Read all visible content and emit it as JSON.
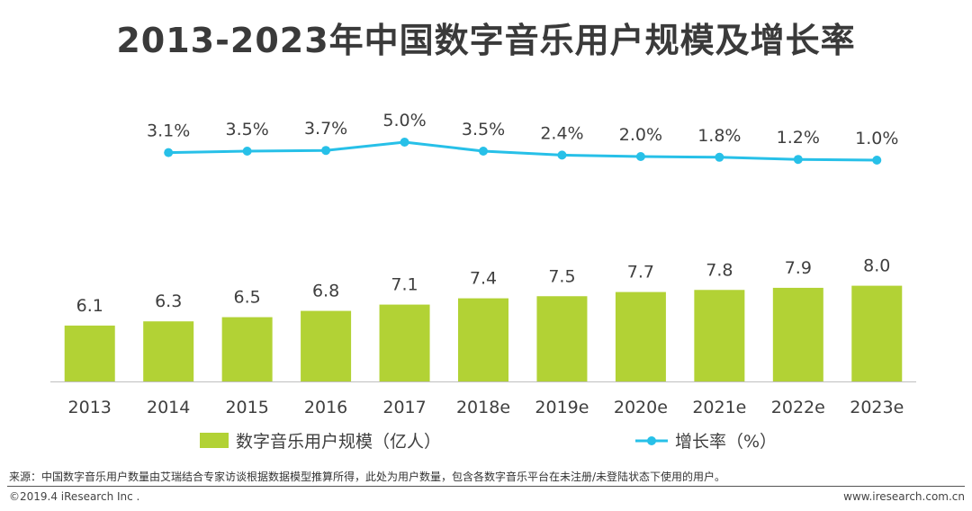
{
  "chart_data": {
    "type": "bar",
    "title": "2013-2023年中国数字音乐用户规模及增长率",
    "categories": [
      "2013",
      "2014",
      "2015",
      "2016",
      "2017",
      "2018e",
      "2019e",
      "2020e",
      "2021e",
      "2022e",
      "2023e"
    ],
    "series": [
      {
        "name": "数字音乐用户规模（亿人）",
        "type": "bar",
        "color": "#b2d235",
        "values": [
          6.1,
          6.3,
          6.5,
          6.8,
          7.1,
          7.4,
          7.5,
          7.7,
          7.8,
          7.9,
          8.0
        ],
        "labels": [
          "6.1",
          "6.3",
          "6.5",
          "6.8",
          "7.1",
          "7.4",
          "7.5",
          "7.7",
          "7.8",
          "7.9",
          "8.0"
        ]
      },
      {
        "name": "增长率（%）",
        "type": "line",
        "color": "#27c0e8",
        "values": [
          null,
          3.1,
          3.5,
          3.7,
          5.0,
          3.5,
          2.4,
          2.0,
          1.8,
          1.2,
          1.0
        ],
        "labels": [
          "",
          "3.1%",
          "3.5%",
          "3.7%",
          "5.0%",
          "3.5%",
          "2.4%",
          "2.0%",
          "1.8%",
          "1.2%",
          "1.0%"
        ]
      }
    ],
    "legend_position": "bottom",
    "grid": false
  },
  "footer": {
    "source": "来源：中国数字音乐用户数量由艾瑞结合专家访谈根据数据模型推算所得，此处为用户数量，包含各数字音乐平台在未注册/未登陆状态下使用的用户。",
    "copyright": "©2019.4 iResearch Inc .",
    "website": "www.iresearch.com.cn"
  }
}
